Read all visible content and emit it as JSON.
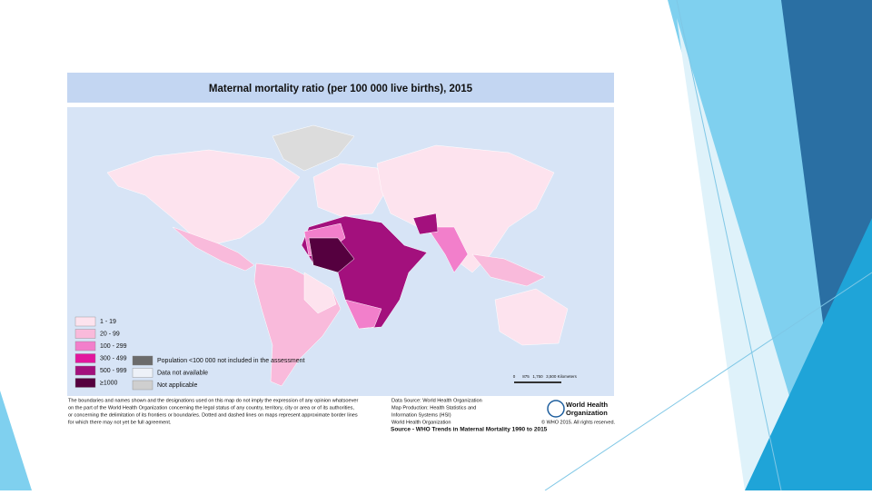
{
  "title": "Maternal mortality ratio (per 100 000 live births), 2015",
  "legend": [
    {
      "label": "1 - 19",
      "color": "#fde3ee"
    },
    {
      "label": "20 - 99",
      "color": "#f9badb"
    },
    {
      "label": "100 - 299",
      "color": "#f27fcb"
    },
    {
      "label": "300 - 499",
      "color": "#e2179e"
    },
    {
      "label": "500 - 999",
      "color": "#a3107d"
    },
    {
      "label": "≥1000",
      "color": "#55003f"
    }
  ],
  "legend_other": [
    {
      "label": "Population <100 000 not included in the assessment",
      "color": "#6b6b6b"
    },
    {
      "label": "Data not available",
      "color": "#edf1f8"
    },
    {
      "label": "Not applicable",
      "color": "#cfcfcf"
    }
  ],
  "scale": [
    "0",
    "875",
    "1,750",
    "3,500 Kilometers"
  ],
  "disclaimer": [
    "The boundaries and names shown and the designations used on this map do not imply the expression of any opinion whatsoever",
    "on the part of the World Health Organization concerning the legal status of any country, territory, city or area or of its authorities,",
    "or concerning the delimitation of its frontiers or boundaries. Dotted and dashed lines on maps represent approximate border lines",
    "for which there may not yet be full agreement."
  ],
  "data_source": [
    "Data Source: World Health Organization",
    "Map Production: Health Statistics and",
    "Information Systems (HSI)",
    "World Health Organization"
  ],
  "source": "Source - WHO Trends in Maternal Mortality 1990 to 2015",
  "who_logo": [
    "World Health",
    "Organization"
  ],
  "copyright": "© WHO 2015. All rights reserved."
}
